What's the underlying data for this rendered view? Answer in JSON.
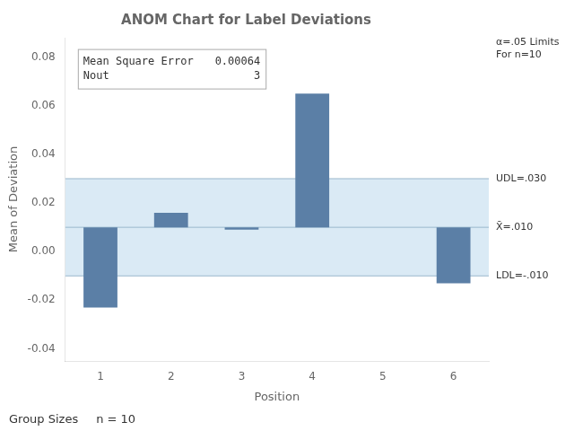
{
  "chart_data": {
    "type": "bar",
    "title": "ANOM Chart for Label Deviations",
    "x_label": "Position",
    "y_label": "Mean of Deviation",
    "categories": [
      "1",
      "2",
      "3",
      "4",
      "5",
      "6"
    ],
    "values": [
      -0.023,
      0.016,
      0.009,
      0.065,
      0.01,
      -0.013
    ],
    "baseline": 0.01,
    "color": "#5b7fa6",
    "ylim": [
      -0.045,
      0.088
    ],
    "yticks": [
      -0.04,
      -0.02,
      {
        "value": 0,
        "label": "0.00"
      },
      0.02,
      0.04,
      0.06,
      0.08
    ],
    "grid": false,
    "band": {
      "low": -0.01,
      "high": 0.03,
      "color": "#daeaf5"
    },
    "limit_lines": [
      {
        "value": 0.03,
        "label": "UDL=.030",
        "color": "#9ab8cc"
      },
      {
        "value": 0.01,
        "label": "X̄=.010",
        "color": "#9ab8cc"
      },
      {
        "value": -0.01,
        "label": "LDL=-.010",
        "color": "#9ab8cc"
      }
    ],
    "limits_title": "α=.05 Limits\nFor n=10",
    "inset": [
      {
        "label": "Mean Square Error",
        "value": 0.00064
      },
      {
        "label": "Nout",
        "value": 3
      }
    ],
    "footer": [
      "Group Sizes",
      "n = 10"
    ]
  }
}
